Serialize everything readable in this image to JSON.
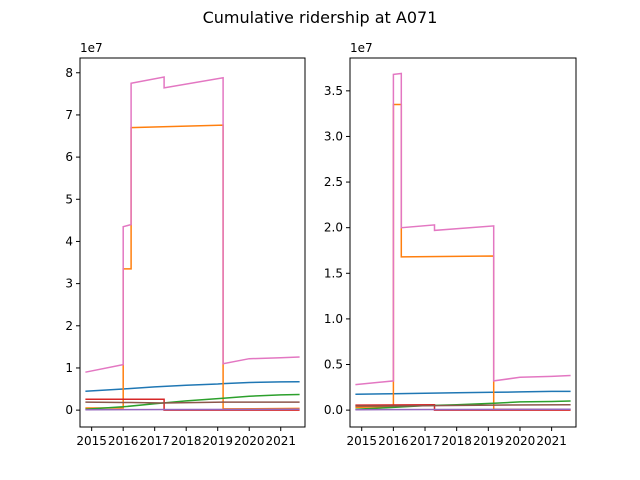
{
  "chart_data": {
    "title": "Cumulative ridership at A071",
    "charts": [
      {
        "type": "line",
        "x_unit": "year",
        "xlim": [
          2014.63,
          2021.77
        ],
        "ylim": [
          -0.4,
          8.35
        ],
        "y_exponent_label": "1e7",
        "xticks": [
          2015,
          2016,
          2017,
          2018,
          2019,
          2020,
          2021
        ],
        "xtick_labels": [
          "2015",
          "2016",
          "2017",
          "2018",
          "2019",
          "2020",
          "2021"
        ],
        "yticks": [
          0,
          1,
          2,
          3,
          4,
          5,
          6,
          7,
          8
        ],
        "ytick_labels": [
          "0",
          "1",
          "2",
          "3",
          "4",
          "5",
          "6",
          "7",
          "8"
        ],
        "grid": false,
        "series": [
          {
            "color": "#1f77b4",
            "points": [
              [
                2014.8,
                0.45
              ],
              [
                2016.0,
                0.5
              ],
              [
                2017.0,
                0.55
              ],
              [
                2018.0,
                0.59
              ],
              [
                2019.0,
                0.62
              ],
              [
                2019.17,
                0.63
              ],
              [
                2020.0,
                0.655
              ],
              [
                2021.0,
                0.67
              ],
              [
                2021.6,
                0.675
              ]
            ]
          },
          {
            "color": "#ff7f0e",
            "points": [
              [
                2014.8,
                0.05
              ],
              [
                2016.0,
                0.05
              ],
              [
                2016.0,
                3.35
              ],
              [
                2016.25,
                3.35
              ],
              [
                2016.25,
                6.7
              ],
              [
                2019.17,
                6.76
              ],
              [
                2019.17,
                0.03
              ],
              [
                2021.6,
                0.04
              ]
            ]
          },
          {
            "color": "#2ca02c",
            "points": [
              [
                2014.8,
                0.02
              ],
              [
                2016.0,
                0.08
              ],
              [
                2017.0,
                0.15
              ],
              [
                2018.0,
                0.22
              ],
              [
                2019.17,
                0.28
              ],
              [
                2020.0,
                0.33
              ],
              [
                2021.0,
                0.36
              ],
              [
                2021.6,
                0.37
              ]
            ]
          },
          {
            "color": "#d62728",
            "points": [
              [
                2014.8,
                0.26
              ],
              [
                2017.3,
                0.26
              ],
              [
                2017.3,
                0.0
              ],
              [
                2021.6,
                0.0
              ]
            ]
          },
          {
            "color": "#9467bd",
            "points": [
              [
                2014.8,
                0.01
              ],
              [
                2021.6,
                0.02
              ]
            ]
          },
          {
            "color": "#8c564b",
            "points": [
              [
                2014.8,
                0.19
              ],
              [
                2016.0,
                0.18
              ],
              [
                2016.25,
                0.18
              ],
              [
                2017.3,
                0.17
              ],
              [
                2019.17,
                0.19
              ],
              [
                2021.6,
                0.19
              ]
            ]
          },
          {
            "color": "#e377c2",
            "points": [
              [
                2014.8,
                0.9
              ],
              [
                2016.0,
                1.08
              ],
              [
                2016.0,
                4.35
              ],
              [
                2016.25,
                4.4
              ],
              [
                2016.25,
                7.75
              ],
              [
                2017.3,
                7.9
              ],
              [
                2017.3,
                7.64
              ],
              [
                2019.17,
                7.88
              ],
              [
                2019.17,
                1.1
              ],
              [
                2020.0,
                1.22
              ],
              [
                2021.0,
                1.24
              ],
              [
                2021.6,
                1.26
              ]
            ]
          }
        ]
      },
      {
        "type": "line",
        "x_unit": "year",
        "xlim": [
          2014.63,
          2021.77
        ],
        "ylim": [
          -0.185,
          3.86
        ],
        "y_exponent_label": "1e7",
        "xticks": [
          2015,
          2016,
          2017,
          2018,
          2019,
          2020,
          2021
        ],
        "xtick_labels": [
          "2015",
          "2016",
          "2017",
          "2018",
          "2019",
          "2020",
          "2021"
        ],
        "yticks": [
          0,
          0.5,
          1.0,
          1.5,
          2.0,
          2.5,
          3.0,
          3.5
        ],
        "ytick_labels": [
          "0.0",
          "0.5",
          "1.0",
          "1.5",
          "2.0",
          "2.5",
          "3.0",
          "3.5"
        ],
        "grid": false,
        "series": [
          {
            "color": "#1f77b4",
            "points": [
              [
                2014.8,
                0.175
              ],
              [
                2016.0,
                0.18
              ],
              [
                2017.0,
                0.185
              ],
              [
                2018.0,
                0.19
              ],
              [
                2019.17,
                0.195
              ],
              [
                2020.0,
                0.2
              ],
              [
                2021.0,
                0.205
              ],
              [
                2021.6,
                0.205
              ]
            ]
          },
          {
            "color": "#ff7f0e",
            "points": [
              [
                2014.8,
                0.03
              ],
              [
                2016.0,
                0.04
              ],
              [
                2016.0,
                3.35
              ],
              [
                2016.25,
                3.35
              ],
              [
                2016.25,
                1.68
              ],
              [
                2019.17,
                1.69
              ],
              [
                2019.17,
                0.01
              ],
              [
                2021.6,
                0.01
              ]
            ]
          },
          {
            "color": "#2ca02c",
            "points": [
              [
                2014.8,
                0.01
              ],
              [
                2016.0,
                0.03
              ],
              [
                2017.0,
                0.05
              ],
              [
                2018.0,
                0.06
              ],
              [
                2019.17,
                0.075
              ],
              [
                2020.0,
                0.09
              ],
              [
                2021.0,
                0.095
              ],
              [
                2021.6,
                0.1
              ]
            ]
          },
          {
            "color": "#d62728",
            "points": [
              [
                2014.8,
                0.055
              ],
              [
                2017.3,
                0.06
              ],
              [
                2017.3,
                0.0
              ],
              [
                2021.6,
                0.0
              ]
            ]
          },
          {
            "color": "#9467bd",
            "points": [
              [
                2014.8,
                0.005
              ],
              [
                2021.6,
                0.01
              ]
            ]
          },
          {
            "color": "#8c564b",
            "points": [
              [
                2014.8,
                0.045
              ],
              [
                2016.0,
                0.045
              ],
              [
                2017.3,
                0.05
              ],
              [
                2019.17,
                0.055
              ],
              [
                2021.6,
                0.06
              ]
            ]
          },
          {
            "color": "#e377c2",
            "points": [
              [
                2014.8,
                0.28
              ],
              [
                2016.0,
                0.32
              ],
              [
                2016.0,
                3.68
              ],
              [
                2016.25,
                3.69
              ],
              [
                2016.25,
                2.0
              ],
              [
                2017.3,
                2.03
              ],
              [
                2017.3,
                1.97
              ],
              [
                2019.17,
                2.02
              ],
              [
                2019.17,
                0.32
              ],
              [
                2020.0,
                0.36
              ],
              [
                2021.0,
                0.37
              ],
              [
                2021.6,
                0.38
              ]
            ]
          }
        ]
      }
    ]
  }
}
